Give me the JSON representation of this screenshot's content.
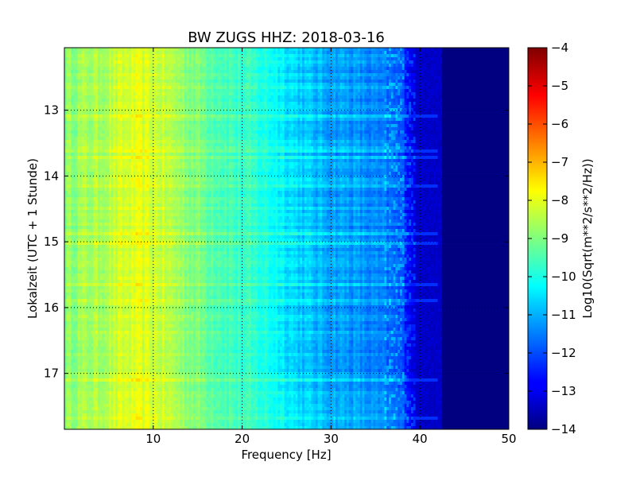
{
  "chart_data": {
    "type": "heatmap",
    "title": "BW ZUGS HHZ: 2018-03-16",
    "xlabel": "Frequency [Hz]",
    "ylabel": "Lokalzeit (UTC + 1 Stunde)",
    "xlim": [
      0,
      50
    ],
    "ylim": [
      12.05,
      17.85
    ],
    "y_inverted": true,
    "xticks": [
      10,
      20,
      30,
      40,
      50
    ],
    "xtick_labels": [
      "10",
      "20",
      "30",
      "40",
      "50"
    ],
    "yticks": [
      13,
      14,
      15,
      16,
      17
    ],
    "ytick_labels": [
      "13",
      "14",
      "15",
      "16",
      "17"
    ],
    "grid": true,
    "colormap": "jet",
    "colorbar": {
      "label": "Log10(Sqrt(m**2/s**2/Hz))",
      "range": [
        -14,
        -4
      ],
      "ticks": [
        -4,
        -5,
        -6,
        -7,
        -8,
        -9,
        -10,
        -11,
        -12,
        -13,
        -14
      ],
      "tick_labels": [
        "−4",
        "−5",
        "−6",
        "−7",
        "−8",
        "−9",
        "−10",
        "−11",
        "−12",
        "−13",
        "−14"
      ]
    },
    "profile": {
      "frequency_hz": [
        0,
        2,
        4,
        6,
        8,
        10,
        12,
        14,
        16,
        18,
        20,
        22,
        24,
        26,
        28,
        30,
        32,
        34,
        36,
        38,
        40,
        42,
        44,
        46,
        48,
        50
      ],
      "typical_value": [
        -8.9,
        -8.7,
        -8.6,
        -8.3,
        -8.1,
        -8.2,
        -8.5,
        -8.9,
        -9.2,
        -9.5,
        -9.7,
        -9.9,
        -10.2,
        -10.6,
        -10.9,
        -11.1,
        -11.2,
        -11.4,
        -11.6,
        -12.0,
        -13.6,
        -14.0,
        -14.0,
        -14.0,
        -14.0,
        -14.0
      ]
    }
  }
}
